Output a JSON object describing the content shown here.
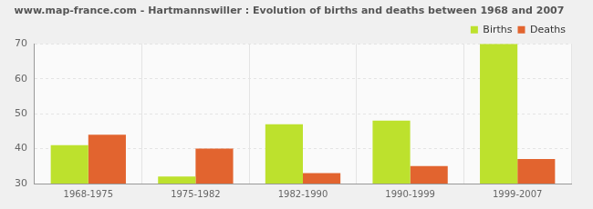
{
  "chart_data": {
    "type": "bar",
    "title": "www.map-france.com - Hartmannswiller : Evolution of births and deaths between 1968 and 2007",
    "categories": [
      "1968-1975",
      "1975-1982",
      "1982-1990",
      "1990-1999",
      "1999-2007"
    ],
    "series": [
      {
        "name": "Births",
        "color": "#bde12d",
        "values": [
          41,
          32,
          47,
          48,
          70
        ]
      },
      {
        "name": "Deaths",
        "color": "#e2642f",
        "values": [
          44,
          40,
          33,
          35,
          37
        ]
      }
    ],
    "ylim": [
      30,
      70
    ],
    "yticks": [
      30,
      40,
      50,
      60,
      70
    ],
    "grid": true,
    "legend": "top-right"
  }
}
